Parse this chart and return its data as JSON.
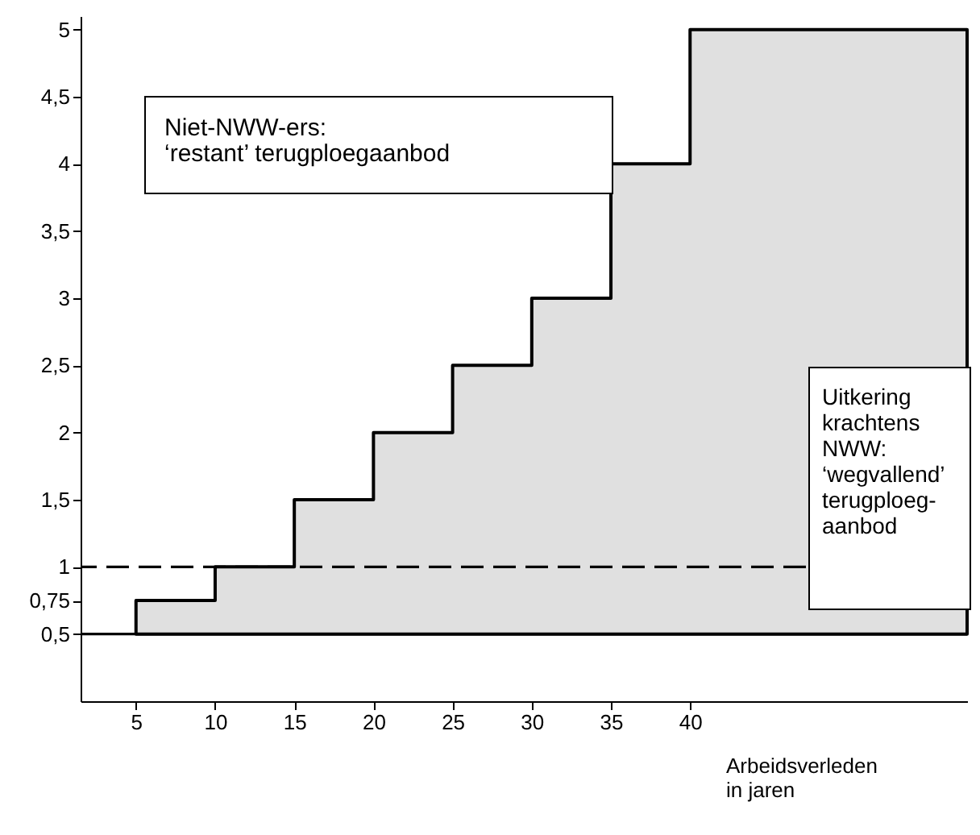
{
  "chart_data": {
    "type": "area",
    "xlabel": "Arbeidsverleden in jaren",
    "x": [
      5,
      10,
      15,
      20,
      25,
      30,
      35,
      40,
      57.5
    ],
    "series": [
      {
        "color": "#000000",
        "values": [
          0.75,
          1,
          1.5,
          2,
          2.5,
          3,
          4,
          5,
          5
        ]
      }
    ],
    "xlim": [
      1.5,
      57.5
    ],
    "xticks": [
      5,
      10,
      15,
      20,
      25,
      30,
      35,
      40
    ],
    "ylim": [
      0,
      5.1
    ],
    "yticks": [
      {
        "value": 0.5,
        "label": "0,5"
      },
      {
        "value": 0.75,
        "label": "0,75"
      },
      1,
      {
        "value": 1.5,
        "label": "1,5"
      },
      2,
      {
        "value": 2.5,
        "label": "2,5"
      },
      3,
      {
        "value": 3.5,
        "label": "3,5"
      },
      4,
      {
        "value": 4.5,
        "label": "4,5"
      },
      5
    ],
    "ref_lines": [
      {
        "axis": "y",
        "value": 0.5,
        "line_style": "solid"
      },
      {
        "axis": "y",
        "value": 1,
        "line_style": "dashed"
      }
    ],
    "annotations": [
      "Niet-NWW-ers:\n‘restant’ terugploegaanbod",
      "Uitkering\nkrachtens\nNWW:\n‘wegvallend’\nterugploeg-\naanbod"
    ],
    "grid": false
  }
}
